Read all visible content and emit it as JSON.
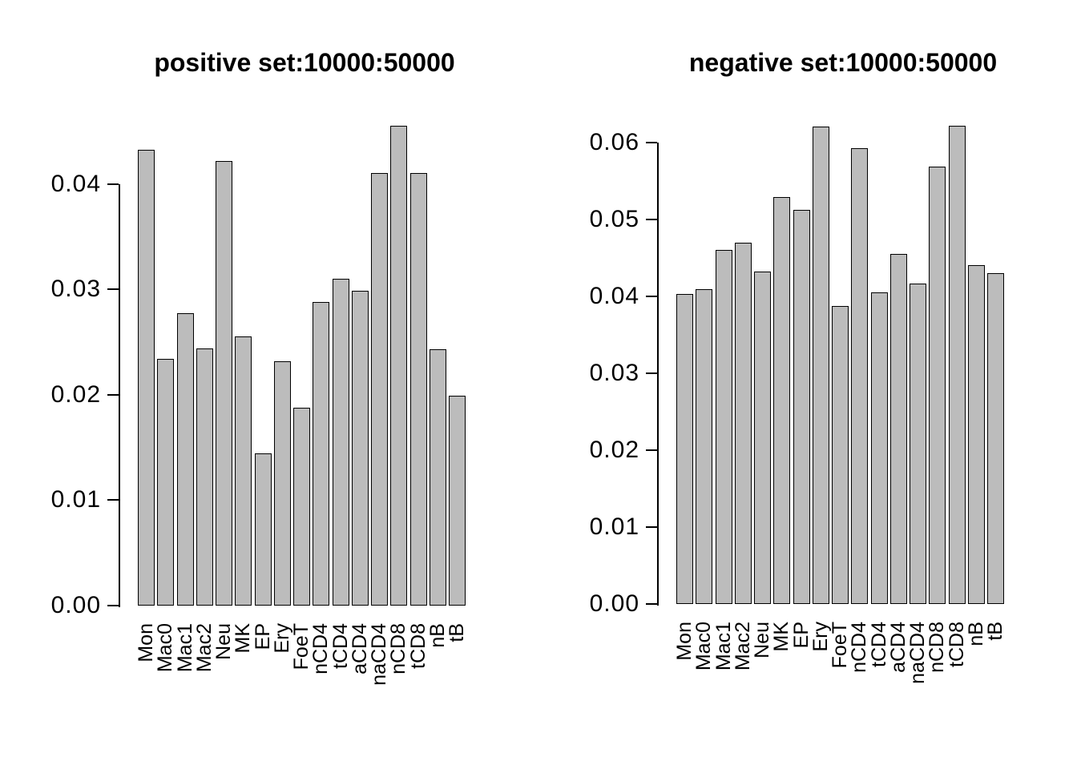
{
  "figure": {
    "background": "#ffffff",
    "text_color": "#000000"
  },
  "chart_data": [
    {
      "type": "bar",
      "title": "positive set:10000:50000",
      "categories": [
        "Mon",
        "Mac0",
        "Mac1",
        "Mac2",
        "Neu",
        "MK",
        "EP",
        "Ery",
        "FoeT",
        "nCD4",
        "tCD4",
        "aCD4",
        "naCD4",
        "nCD8",
        "tCD8",
        "nB",
        "tB"
      ],
      "values": [
        0.0432,
        0.0234,
        0.0277,
        0.0244,
        0.0422,
        0.0255,
        0.0144,
        0.0232,
        0.0188,
        0.0288,
        0.031,
        0.0299,
        0.041,
        0.0455,
        0.041,
        0.0243,
        0.0199
      ],
      "xlabel": "",
      "ylabel": "",
      "ylim": [
        0,
        0.045
      ],
      "yticks": [
        0,
        0.01,
        0.02,
        0.03,
        0.04
      ],
      "ytick_labels": [
        "0.00",
        "0.01",
        "0.02",
        "0.03",
        "0.04"
      ],
      "grid": false,
      "legend": null,
      "x_labels_rotated_90": true,
      "bar_color": "#bcbcbc",
      "bar_border_color": "#000000"
    },
    {
      "type": "bar",
      "title": "negative set:10000:50000",
      "categories": [
        "Mon",
        "Mac0",
        "Mac1",
        "Mac2",
        "Neu",
        "MK",
        "EP",
        "Ery",
        "FoeT",
        "nCD4",
        "tCD4",
        "aCD4",
        "naCD4",
        "nCD8",
        "tCD8",
        "nB",
        "tB"
      ],
      "values": [
        0.0403,
        0.0409,
        0.046,
        0.047,
        0.0432,
        0.0529,
        0.0513,
        0.0621,
        0.0388,
        0.0593,
        0.0405,
        0.0455,
        0.0417,
        0.0569,
        0.0622,
        0.0441,
        0.043
      ],
      "xlabel": "",
      "ylabel": "",
      "ylim": [
        0,
        0.062
      ],
      "yticks": [
        0,
        0.01,
        0.02,
        0.03,
        0.04,
        0.05,
        0.06
      ],
      "ytick_labels": [
        "0.00",
        "0.01",
        "0.02",
        "0.03",
        "0.04",
        "0.05",
        "0.06"
      ],
      "grid": false,
      "legend": null,
      "x_labels_rotated_90": true,
      "bar_color": "#bcbcbc",
      "bar_border_color": "#000000"
    }
  ]
}
